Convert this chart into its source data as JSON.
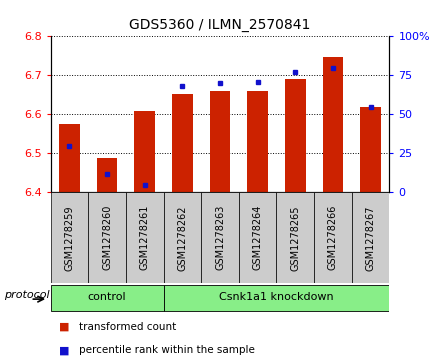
{
  "title": "GDS5360 / ILMN_2570841",
  "samples": [
    "GSM1278259",
    "GSM1278260",
    "GSM1278261",
    "GSM1278262",
    "GSM1278263",
    "GSM1278264",
    "GSM1278265",
    "GSM1278266",
    "GSM1278267"
  ],
  "red_values": [
    6.575,
    6.487,
    6.608,
    6.653,
    6.66,
    6.66,
    6.69,
    6.748,
    6.618
  ],
  "blue_percentiles": [
    30,
    12,
    5,
    68,
    70,
    71,
    77,
    80,
    55
  ],
  "ylim_left": [
    6.4,
    6.8
  ],
  "ylim_right": [
    0,
    100
  ],
  "yticks_left": [
    6.4,
    6.5,
    6.6,
    6.7,
    6.8
  ],
  "yticks_right": [
    0,
    25,
    50,
    75,
    100
  ],
  "yticklabels_right": [
    "0",
    "25",
    "50",
    "75",
    "100%"
  ],
  "groups": [
    {
      "label": "control",
      "start": 0,
      "end": 3
    },
    {
      "label": "Csnk1a1 knockdown",
      "start": 3,
      "end": 9
    }
  ],
  "protocol_label": "protocol",
  "bar_color": "#cc2200",
  "dot_color": "#1111cc",
  "group_bg_color": "#88ee88",
  "tick_area_bg": "#cccccc",
  "legend_items": [
    {
      "color": "#cc2200",
      "label": "transformed count"
    },
    {
      "color": "#1111cc",
      "label": "percentile rank within the sample"
    }
  ],
  "bar_width": 0.55,
  "baseline": 6.4,
  "figsize": [
    4.4,
    3.63
  ],
  "dpi": 100
}
